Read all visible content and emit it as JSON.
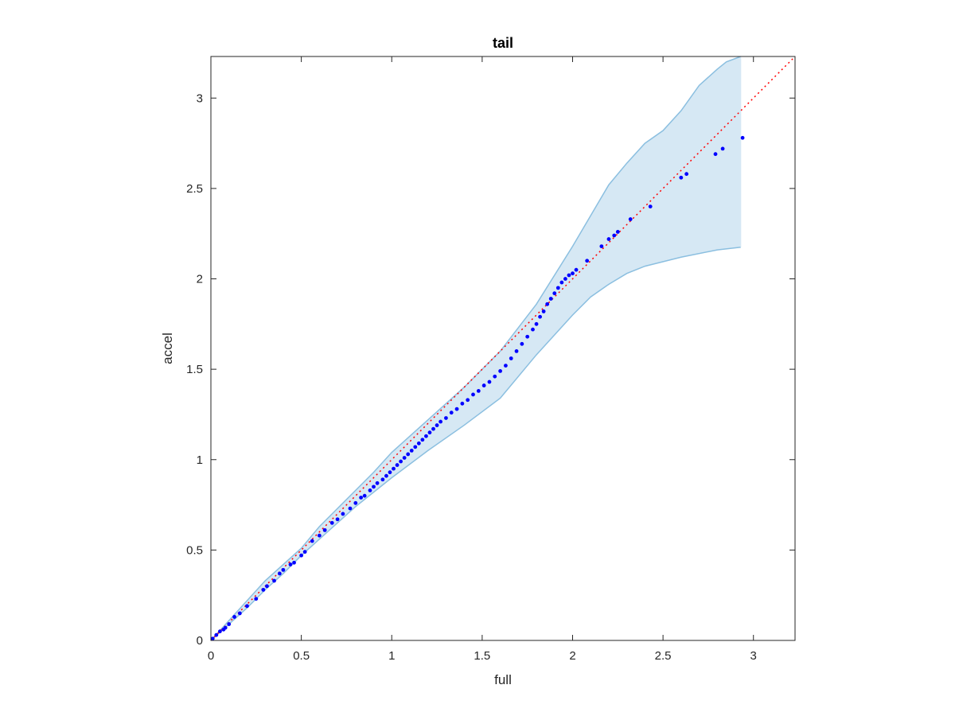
{
  "chart_data": {
    "type": "scatter",
    "title": "tail",
    "xlabel": "full",
    "ylabel": "accel",
    "xlim": [
      0,
      3.23
    ],
    "ylim": [
      0,
      3.23
    ],
    "xticks": [
      0,
      0.5,
      1,
      1.5,
      2,
      2.5,
      3
    ],
    "yticks": [
      0,
      0.5,
      1,
      1.5,
      2,
      2.5,
      3
    ],
    "xtick_labels": [
      "0",
      "0.5",
      "1",
      "1.5",
      "2",
      "2.5",
      "3"
    ],
    "ytick_labels": [
      "0",
      "0.5",
      "1",
      "1.5",
      "2",
      "2.5",
      "3"
    ],
    "grid": false,
    "reference_line": {
      "from": [
        0,
        0
      ],
      "to": [
        3.23,
        3.23
      ],
      "style": "dotted",
      "color": "#ff0000"
    },
    "band": {
      "color_fill": "#d6e8f4",
      "color_edge": "#8bbfe0",
      "upper": [
        [
          0,
          0
        ],
        [
          0.1,
          0.11
        ],
        [
          0.2,
          0.22
        ],
        [
          0.3,
          0.33
        ],
        [
          0.4,
          0.42
        ],
        [
          0.5,
          0.51
        ],
        [
          0.6,
          0.63
        ],
        [
          0.7,
          0.73
        ],
        [
          0.8,
          0.83
        ],
        [
          0.9,
          0.93
        ],
        [
          1.0,
          1.04
        ],
        [
          1.2,
          1.22
        ],
        [
          1.4,
          1.4
        ],
        [
          1.6,
          1.6
        ],
        [
          1.8,
          1.86
        ],
        [
          2.0,
          2.18
        ],
        [
          2.1,
          2.35
        ],
        [
          2.2,
          2.52
        ],
        [
          2.3,
          2.64
        ],
        [
          2.4,
          2.75
        ],
        [
          2.5,
          2.82
        ],
        [
          2.6,
          2.93
        ],
        [
          2.7,
          3.07
        ],
        [
          2.8,
          3.16
        ],
        [
          2.85,
          3.2
        ],
        [
          2.93,
          3.23
        ]
      ],
      "lower": [
        [
          0,
          0
        ],
        [
          0.1,
          0.09
        ],
        [
          0.2,
          0.18
        ],
        [
          0.3,
          0.28
        ],
        [
          0.4,
          0.37
        ],
        [
          0.5,
          0.47
        ],
        [
          0.6,
          0.56
        ],
        [
          0.8,
          0.74
        ],
        [
          1.0,
          0.9
        ],
        [
          1.2,
          1.05
        ],
        [
          1.4,
          1.19
        ],
        [
          1.6,
          1.34
        ],
        [
          1.8,
          1.58
        ],
        [
          1.9,
          1.69
        ],
        [
          2.0,
          1.8
        ],
        [
          2.1,
          1.9
        ],
        [
          2.2,
          1.97
        ],
        [
          2.3,
          2.03
        ],
        [
          2.4,
          2.07
        ],
        [
          2.6,
          2.12
        ],
        [
          2.8,
          2.16
        ],
        [
          2.93,
          2.175
        ]
      ]
    },
    "series": [
      {
        "color": "#0000ff",
        "points": [
          [
            0.01,
            0.01
          ],
          [
            0.03,
            0.03
          ],
          [
            0.05,
            0.05
          ],
          [
            0.07,
            0.06
          ],
          [
            0.08,
            0.07
          ],
          [
            0.1,
            0.09
          ],
          [
            0.13,
            0.13
          ],
          [
            0.16,
            0.15
          ],
          [
            0.2,
            0.19
          ],
          [
            0.25,
            0.23
          ],
          [
            0.29,
            0.28
          ],
          [
            0.31,
            0.3
          ],
          [
            0.35,
            0.33
          ],
          [
            0.38,
            0.37
          ],
          [
            0.4,
            0.39
          ],
          [
            0.44,
            0.42
          ],
          [
            0.46,
            0.43
          ],
          [
            0.5,
            0.47
          ],
          [
            0.52,
            0.49
          ],
          [
            0.56,
            0.55
          ],
          [
            0.6,
            0.58
          ],
          [
            0.63,
            0.61
          ],
          [
            0.67,
            0.65
          ],
          [
            0.7,
            0.67
          ],
          [
            0.73,
            0.7
          ],
          [
            0.77,
            0.73
          ],
          [
            0.8,
            0.76
          ],
          [
            0.83,
            0.79
          ],
          [
            0.85,
            0.8
          ],
          [
            0.88,
            0.83
          ],
          [
            0.9,
            0.85
          ],
          [
            0.92,
            0.87
          ],
          [
            0.95,
            0.89
          ],
          [
            0.97,
            0.91
          ],
          [
            0.99,
            0.93
          ],
          [
            1.01,
            0.95
          ],
          [
            1.03,
            0.97
          ],
          [
            1.05,
            0.99
          ],
          [
            1.07,
            1.01
          ],
          [
            1.09,
            1.03
          ],
          [
            1.11,
            1.05
          ],
          [
            1.13,
            1.07
          ],
          [
            1.15,
            1.09
          ],
          [
            1.17,
            1.11
          ],
          [
            1.19,
            1.13
          ],
          [
            1.21,
            1.15
          ],
          [
            1.23,
            1.17
          ],
          [
            1.25,
            1.19
          ],
          [
            1.27,
            1.21
          ],
          [
            1.3,
            1.23
          ],
          [
            1.33,
            1.26
          ],
          [
            1.36,
            1.28
          ],
          [
            1.39,
            1.31
          ],
          [
            1.42,
            1.33
          ],
          [
            1.45,
            1.36
          ],
          [
            1.48,
            1.38
          ],
          [
            1.51,
            1.41
          ],
          [
            1.54,
            1.43
          ],
          [
            1.57,
            1.46
          ],
          [
            1.6,
            1.49
          ],
          [
            1.63,
            1.52
          ],
          [
            1.66,
            1.56
          ],
          [
            1.69,
            1.6
          ],
          [
            1.72,
            1.64
          ],
          [
            1.75,
            1.68
          ],
          [
            1.78,
            1.72
          ],
          [
            1.8,
            1.75
          ],
          [
            1.82,
            1.79
          ],
          [
            1.84,
            1.82
          ],
          [
            1.86,
            1.86
          ],
          [
            1.88,
            1.89
          ],
          [
            1.9,
            1.92
          ],
          [
            1.92,
            1.95
          ],
          [
            1.94,
            1.98
          ],
          [
            1.96,
            2.0
          ],
          [
            1.98,
            2.02
          ],
          [
            2.0,
            2.03
          ],
          [
            2.02,
            2.05
          ],
          [
            2.08,
            2.1
          ],
          [
            2.16,
            2.18
          ],
          [
            2.2,
            2.22
          ],
          [
            2.23,
            2.24
          ],
          [
            2.25,
            2.26
          ],
          [
            2.32,
            2.33
          ],
          [
            2.43,
            2.4
          ],
          [
            2.6,
            2.56
          ],
          [
            2.63,
            2.58
          ],
          [
            2.79,
            2.69
          ],
          [
            2.83,
            2.72
          ],
          [
            2.94,
            2.78
          ]
        ]
      }
    ]
  }
}
